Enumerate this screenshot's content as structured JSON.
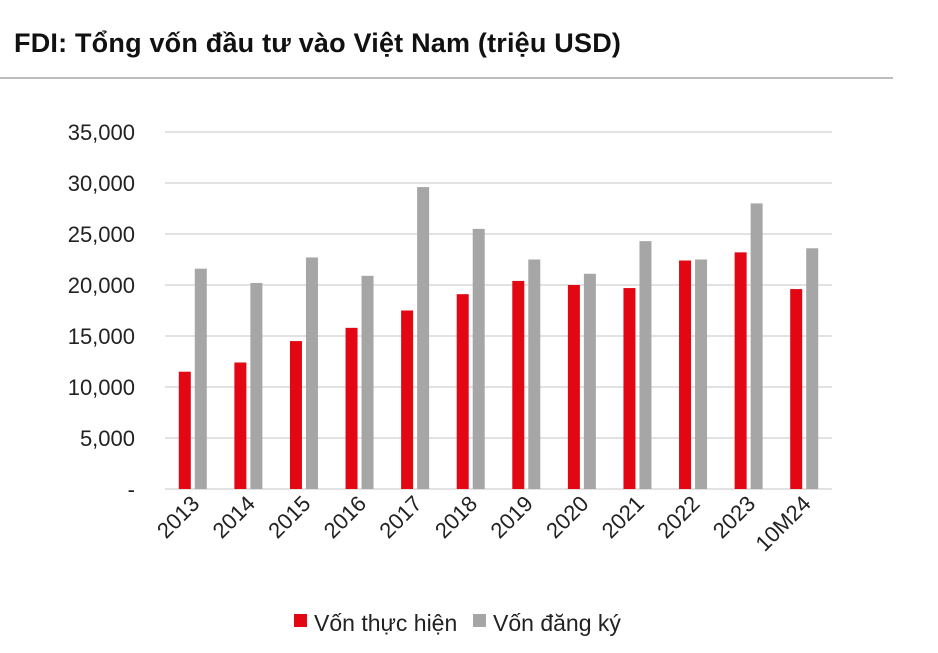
{
  "title": "FDI: Tổng vốn đầu tư vào Việt Nam (triệu USD)",
  "chart_data": {
    "type": "bar",
    "categories": [
      "2013",
      "2014",
      "2015",
      "2016",
      "2017",
      "2018",
      "2019",
      "2020",
      "2021",
      "2022",
      "2023",
      "10M24"
    ],
    "series": [
      {
        "name": "Vốn thực hiện",
        "color": "#e30613",
        "values": [
          11500,
          12400,
          14500,
          15800,
          17500,
          19100,
          20400,
          20000,
          19700,
          22400,
          23200,
          19600
        ]
      },
      {
        "name": "Vốn đăng ký",
        "color": "#a6a6a6",
        "values": [
          21600,
          20200,
          22700,
          20900,
          29600,
          25500,
          22500,
          21100,
          24300,
          22500,
          28000,
          23600
        ]
      }
    ],
    "yticks": [
      {
        "value": 0,
        "label": "-"
      },
      {
        "value": 5000,
        "label": "5,000"
      },
      {
        "value": 10000,
        "label": "10,000"
      },
      {
        "value": 15000,
        "label": "15,000"
      },
      {
        "value": 20000,
        "label": "20,000"
      },
      {
        "value": 25000,
        "label": "25,000"
      },
      {
        "value": 30000,
        "label": "30,000"
      },
      {
        "value": 35000,
        "label": "35,000"
      }
    ],
    "ylim": [
      0,
      35000
    ],
    "grid": true,
    "legend_position": "bottom-center",
    "xlabel": "",
    "ylabel": ""
  }
}
